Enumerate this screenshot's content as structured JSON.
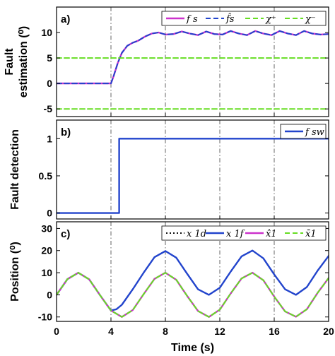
{
  "chart_data": [
    {
      "type": "line",
      "panel_label": "a)",
      "ylabel_lines": [
        "Fault",
        "estimation (⁰)"
      ],
      "xlim": [
        0,
        20
      ],
      "ylim": [
        -6.5,
        15
      ],
      "yticks": [
        -5,
        0,
        5,
        10
      ],
      "ytick_labels": [
        "-5",
        "0",
        "5",
        "10"
      ],
      "legend_placement": "top-right",
      "vlines": [
        4,
        8,
        12,
        16
      ],
      "series": [
        {
          "name": "fs",
          "legend_label": "f s",
          "color": "#cc33cc",
          "style": "solid",
          "width": 2.4,
          "x": [
            0,
            4,
            4.2,
            4.5,
            4.8,
            5.2,
            5.6,
            6.0,
            6.5,
            7.0,
            7.5,
            8.0,
            8.6,
            9.2,
            9.8,
            10.4,
            11.0,
            11.6,
            12.2,
            12.8,
            13.4,
            14.0,
            14.6,
            15.2,
            15.8,
            16.4,
            17.0,
            17.6,
            18.2,
            18.8,
            19.4,
            20
          ],
          "y": [
            0,
            0,
            1.5,
            4.0,
            6.0,
            7.4,
            8.0,
            8.4,
            9.2,
            9.8,
            10.0,
            9.6,
            9.7,
            10.2,
            9.8,
            9.5,
            10.2,
            9.7,
            9.6,
            10.3,
            9.8,
            9.5,
            10.3,
            9.8,
            9.5,
            10.3,
            9.8,
            9.5,
            10.3,
            9.8,
            9.6,
            9.7
          ]
        },
        {
          "name": "fs-hat",
          "legend_label": "f̂s",
          "color": "#2244cc",
          "style": "dashed",
          "width": 2,
          "x": [
            0,
            4,
            4.2,
            4.5,
            4.8,
            5.2,
            5.6,
            6.0,
            6.5,
            7.0,
            7.5,
            8.0,
            8.6,
            9.2,
            9.8,
            10.4,
            11.0,
            11.6,
            12.2,
            12.8,
            13.4,
            14.0,
            14.6,
            15.2,
            15.8,
            16.4,
            17.0,
            17.6,
            18.2,
            18.8,
            19.4,
            20
          ],
          "y": [
            0,
            0,
            1.5,
            4.0,
            6.0,
            7.4,
            8.0,
            8.4,
            9.2,
            9.8,
            10.0,
            9.6,
            9.7,
            10.2,
            9.8,
            9.5,
            10.2,
            9.7,
            9.6,
            10.3,
            9.8,
            9.5,
            10.3,
            9.8,
            9.5,
            10.3,
            9.8,
            9.5,
            10.3,
            9.8,
            9.6,
            9.7
          ]
        },
        {
          "name": "chi-plus",
          "legend_label": "χ⁺",
          "color": "#66dd22",
          "style": "dashed",
          "width": 2,
          "x": [
            0,
            20
          ],
          "y": [
            5,
            5
          ]
        },
        {
          "name": "chi-minus",
          "legend_label": "χ⁻",
          "color": "#66dd22",
          "style": "dashed",
          "width": 2,
          "x": [
            0,
            20
          ],
          "y": [
            -5,
            -5
          ]
        }
      ]
    },
    {
      "type": "line",
      "panel_label": "b)",
      "ylabel_lines": [
        "Fault detection"
      ],
      "xlim": [
        0,
        20
      ],
      "ylim": [
        -0.08,
        1.25
      ],
      "yticks": [
        0,
        0.5,
        1
      ],
      "ytick_labels": [
        "0",
        "0.5",
        "1"
      ],
      "legend_placement": "top-right",
      "vlines": [
        4,
        8,
        12,
        16
      ],
      "series": [
        {
          "name": "fsw",
          "legend_label": "f sw",
          "color": "#2244cc",
          "style": "solid",
          "width": 2.4,
          "x": [
            0,
            4.6,
            4.6,
            20
          ],
          "y": [
            0,
            0,
            1,
            1
          ]
        }
      ]
    },
    {
      "type": "line",
      "panel_label": "c)",
      "ylabel_lines": [
        "Position (⁰)"
      ],
      "xlim": [
        0,
        20
      ],
      "ylim": [
        -12,
        33
      ],
      "yticks": [
        -10,
        0,
        10,
        20,
        30
      ],
      "ytick_labels": [
        "-10",
        "0",
        "10",
        "20",
        "30"
      ],
      "xticks": [
        0,
        4,
        8,
        12,
        16,
        20
      ],
      "xtick_labels": [
        "0",
        "4",
        "8",
        "12",
        "16",
        "20"
      ],
      "xlabel": "Time (s)",
      "legend_placement": "top",
      "vlines": [
        4,
        8,
        12,
        16
      ],
      "series": [
        {
          "name": "x1d",
          "legend_label": "x 1d",
          "color": "#111111",
          "style": "dotted",
          "width": 2,
          "x": [
            0,
            0.8,
            1.6,
            2.4,
            3.2,
            4.0,
            4.8,
            5.6,
            6.4,
            7.2,
            8.0,
            8.8,
            9.6,
            10.4,
            11.2,
            12.0,
            12.8,
            13.6,
            14.4,
            15.2,
            16.0,
            16.8,
            17.6,
            18.4,
            19.2,
            20.0
          ],
          "y": [
            0,
            7.1,
            10.0,
            7.0,
            -0.2,
            -7.1,
            -10.0,
            -6.9,
            0.3,
            7.2,
            10.0,
            6.8,
            -0.5,
            -7.3,
            -10.0,
            -6.7,
            0.6,
            7.4,
            10.0,
            6.6,
            -0.8,
            -7.5,
            -9.9,
            -6.5,
            1.0,
            7.6
          ]
        },
        {
          "name": "x1f",
          "legend_label": "x 1f",
          "color": "#2244cc",
          "style": "solid",
          "width": 2.4,
          "x": [
            0,
            0.8,
            1.6,
            2.4,
            3.2,
            4.0,
            4.4,
            4.8,
            5.6,
            6.4,
            7.2,
            8.0,
            8.8,
            9.6,
            10.4,
            11.2,
            12.0,
            12.8,
            13.6,
            14.4,
            15.2,
            16.0,
            16.8,
            17.6,
            18.4,
            19.2,
            20.0
          ],
          "y": [
            0,
            7.1,
            10.0,
            7.0,
            -0.2,
            -7.1,
            -6.5,
            -4.5,
            2.5,
            10.0,
            17.0,
            19.8,
            16.8,
            9.5,
            2.5,
            0.0,
            3.2,
            10.5,
            17.4,
            20.0,
            16.5,
            9.2,
            2.5,
            0.0,
            3.5,
            11.0,
            17.6
          ]
        },
        {
          "name": "x1-hat",
          "legend_label": "x̂1",
          "color": "#cc33cc",
          "style": "solid",
          "width": 2.4,
          "x": [
            0,
            0.8,
            1.6,
            2.4,
            3.2,
            4.0,
            4.8,
            5.6,
            6.4,
            7.2,
            8.0,
            8.8,
            9.6,
            10.4,
            11.2,
            12.0,
            12.8,
            13.6,
            14.4,
            15.2,
            16.0,
            16.8,
            17.6,
            18.4,
            19.2,
            20.0
          ],
          "y": [
            0,
            7.1,
            10.0,
            7.0,
            -0.2,
            -7.1,
            -10.0,
            -6.9,
            0.3,
            7.2,
            10.0,
            6.8,
            -0.5,
            -7.3,
            -10.0,
            -6.7,
            0.6,
            7.4,
            10.0,
            6.6,
            -0.8,
            -7.5,
            -9.9,
            -6.5,
            1.0,
            7.6
          ]
        },
        {
          "name": "x1-bar",
          "legend_label": "x̄1",
          "color": "#66dd22",
          "style": "dashed",
          "width": 2,
          "x": [
            0,
            0.8,
            1.6,
            2.4,
            3.2,
            4.0,
            4.8,
            5.6,
            6.4,
            7.2,
            8.0,
            8.8,
            9.6,
            10.4,
            11.2,
            12.0,
            12.8,
            13.6,
            14.4,
            15.2,
            16.0,
            16.8,
            17.6,
            18.4,
            19.2,
            20.0
          ],
          "y": [
            0,
            7.1,
            10.0,
            7.0,
            -0.2,
            -7.1,
            -10.0,
            -6.9,
            0.3,
            7.2,
            10.0,
            6.8,
            -0.5,
            -7.3,
            -10.0,
            -6.7,
            0.6,
            7.4,
            10.0,
            6.6,
            -0.8,
            -7.5,
            -9.9,
            -6.5,
            1.0,
            7.6
          ]
        }
      ]
    }
  ]
}
